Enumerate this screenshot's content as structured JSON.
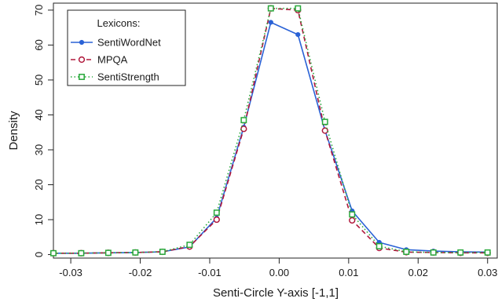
{
  "chart_data": {
    "type": "line",
    "title": "",
    "xlabel": "Senti-Circle Y-axis [-1,1]",
    "ylabel": "Density",
    "xlim": [
      -0.0325,
      0.0315
    ],
    "ylim": [
      -1,
      72
    ],
    "xticks": [
      -0.03,
      -0.02,
      -0.01,
      0.0,
      0.01,
      0.02,
      0.03
    ],
    "xtick_labels": [
      "-0.03",
      "-0.02",
      "-0.01",
      "0.00",
      "0.01",
      "0.02",
      "0.03"
    ],
    "yticks": [
      0,
      10,
      20,
      30,
      40,
      50,
      60,
      70
    ],
    "ytick_labels": [
      "0",
      "10",
      "20",
      "30",
      "40",
      "50",
      "60",
      "70"
    ],
    "grid": false,
    "legend": {
      "title": "Lexicons:",
      "position": "top-left"
    },
    "series": [
      {
        "name": "SentiWordNet",
        "color": "#2a62d6",
        "marker": "filled-circle",
        "line_style": "solid",
        "x": [
          -0.0325,
          -0.0285,
          -0.0246,
          -0.0207,
          -0.0168,
          -0.0129,
          -0.009,
          -0.0051,
          -0.0012,
          0.0027,
          0.0066,
          0.0105,
          0.0144,
          0.0183,
          0.0222,
          0.0261,
          0.03
        ],
        "y": [
          0.4,
          0.4,
          0.5,
          0.6,
          0.8,
          2.2,
          10.5,
          36.5,
          66.5,
          63.0,
          35.5,
          12.5,
          3.5,
          1.4,
          1.0,
          0.8,
          0.7
        ]
      },
      {
        "name": "MPQA",
        "color": "#b0183c",
        "marker": "open-circle",
        "line_style": "dashed",
        "x": [
          -0.0325,
          -0.0285,
          -0.0246,
          -0.0207,
          -0.0168,
          -0.0129,
          -0.009,
          -0.0051,
          -0.0012,
          0.0027,
          0.0066,
          0.0105,
          0.0144,
          0.0183,
          0.0222,
          0.0261,
          0.03
        ],
        "y": [
          0.4,
          0.4,
          0.5,
          0.6,
          0.8,
          2.3,
          10.0,
          36.0,
          70.5,
          70.0,
          35.5,
          9.8,
          1.9,
          0.7,
          0.6,
          0.5,
          0.5
        ]
      },
      {
        "name": "SentiStrength",
        "color": "#27a83a",
        "marker": "open-square",
        "line_style": "dotted",
        "x": [
          -0.0325,
          -0.0285,
          -0.0246,
          -0.0207,
          -0.0168,
          -0.0129,
          -0.009,
          -0.0051,
          -0.0012,
          0.0027,
          0.0066,
          0.0105,
          0.0144,
          0.0183,
          0.0222,
          0.0261,
          0.03
        ],
        "y": [
          0.4,
          0.4,
          0.5,
          0.6,
          0.8,
          2.8,
          12.0,
          38.5,
          70.5,
          70.5,
          38.0,
          11.5,
          2.4,
          0.8,
          0.6,
          0.6,
          0.6
        ]
      }
    ]
  }
}
